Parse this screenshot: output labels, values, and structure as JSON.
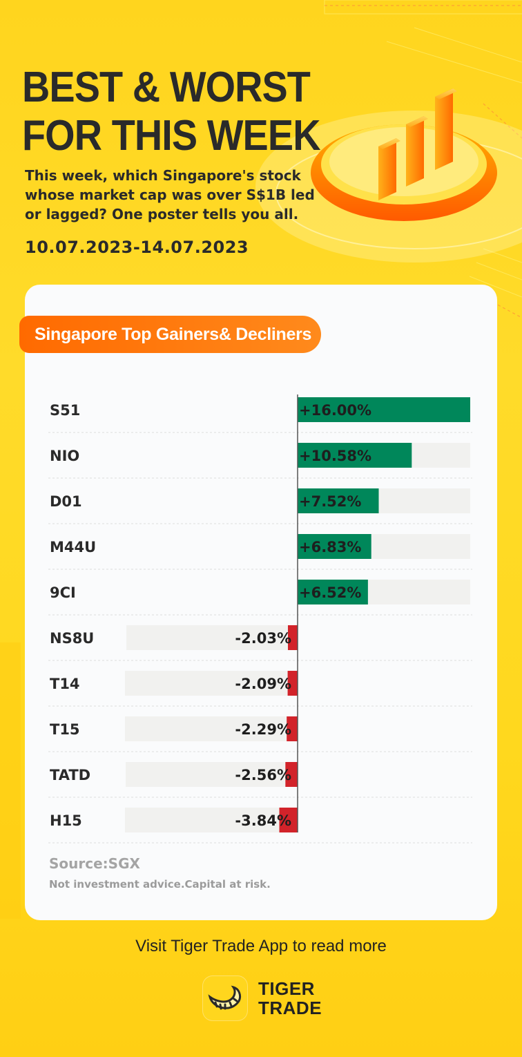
{
  "header": {
    "title_line1": "BEST & WORST",
    "title_line2": "FOR THIS WEEK",
    "subtitle": "This week, which Singapore's stock whose market cap was over S$1B led or lagged? One poster tells you all.",
    "date_range": "10.07.2023-14.07.2023"
  },
  "card": {
    "tag": "Singapore Top Gainers& Decliners",
    "source": "Source:SGX",
    "disclaimer": "Not investment advice.Capital at risk."
  },
  "chart_data": {
    "type": "bar",
    "orientation": "horizontal-diverging",
    "categories": [
      "S51",
      "NIO",
      "D01",
      "M44U",
      "9CI",
      "NS8U",
      "T14",
      "T15",
      "TATD",
      "H15"
    ],
    "values": [
      16.0,
      10.58,
      7.52,
      6.83,
      6.52,
      -2.03,
      -2.09,
      -2.29,
      -2.56,
      -3.84
    ],
    "data_labels": [
      "+16.00%",
      "+10.58%",
      "+7.52%",
      "+6.83%",
      "+6.52%",
      "-2.03%",
      "-2.09%",
      "-2.29%",
      "-2.56%",
      "-3.84%"
    ],
    "title": "Singapore Top Gainers& Decliners",
    "xlabel": "",
    "ylabel": "",
    "xlim": [
      -16,
      16
    ],
    "colors": {
      "positive": "#00875a",
      "negative": "#d2232a",
      "track": "#f1f1ef"
    },
    "grid": false,
    "legend": "none"
  },
  "footer": {
    "cta": "Visit Tiger Trade App to read more",
    "logo_line1": "TIGER",
    "logo_line2": "TRADE",
    "logo_icon": "tiger-stripe-icon"
  }
}
